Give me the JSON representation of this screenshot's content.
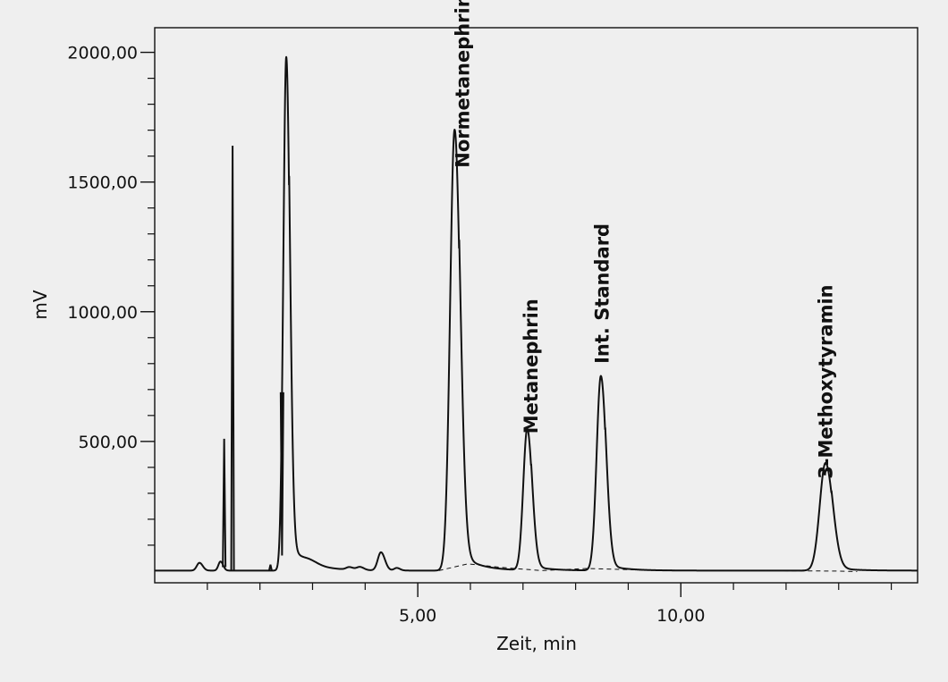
{
  "chart_data": {
    "type": "line",
    "title": "",
    "xlabel": "Zeit, min",
    "ylabel": "mV",
    "xlim": [
      0,
      14.5
    ],
    "ylim": [
      -45,
      2095
    ],
    "x_major_ticks": [
      5,
      10
    ],
    "x_minor_ticks": [
      1,
      2,
      3,
      4,
      6,
      7,
      8,
      9,
      11,
      12,
      13,
      14
    ],
    "x_tick_labels": [
      "5,00",
      "10,00"
    ],
    "y_major_ticks": [
      500,
      1000,
      1500,
      2000
    ],
    "y_minor_ticks": [
      100,
      200,
      300,
      400,
      600,
      700,
      800,
      900,
      1100,
      1200,
      1300,
      1400,
      1600,
      1700,
      1800,
      1900
    ],
    "y_tick_labels": [
      "500,00",
      "1000,00",
      "1500,00",
      "2000,00"
    ],
    "grid": false,
    "baseline_mV": 2,
    "series": [
      {
        "style": "solid",
        "peaks": [
          {
            "rt": 0.85,
            "height": 30,
            "sigma": 0.05
          },
          {
            "rt": 1.25,
            "height": 35,
            "sigma": 0.04
          },
          {
            "rt": 2.5,
            "height": 1980,
            "sigma": 0.055,
            "tail": 0.05
          },
          {
            "rt": 2.95,
            "height": 12,
            "sigma": 0.12
          },
          {
            "rt": 3.7,
            "height": 10,
            "sigma": 0.06
          },
          {
            "rt": 3.9,
            "height": 12,
            "sigma": 0.06
          },
          {
            "rt": 4.3,
            "height": 70,
            "sigma": 0.06
          },
          {
            "rt": 4.6,
            "height": 10,
            "sigma": 0.05
          },
          {
            "rt": 5.7,
            "height": 1700,
            "sigma": 0.085,
            "tail": 0.04
          },
          {
            "rt": 7.08,
            "height": 545,
            "sigma": 0.075,
            "tail": 0.03
          },
          {
            "rt": 8.48,
            "height": 750,
            "sigma": 0.08,
            "tail": 0.03
          },
          {
            "rt": 12.75,
            "height": 415,
            "sigma": 0.11,
            "tail": 0.03
          }
        ],
        "spikes": [
          {
            "x": 1.32,
            "top": 510
          },
          {
            "x": 1.48,
            "top": 1640
          },
          {
            "x": 2.2,
            "top": 25
          },
          {
            "x": 2.42,
            "top": 60
          }
        ]
      },
      {
        "style": "dashed",
        "x": [
          5.4,
          5.95,
          6.6,
          7.35,
          8.2,
          9.3,
          11.5,
          13.0,
          13.35
        ],
        "y": [
          2,
          28,
          14,
          2,
          10,
          4,
          2,
          0,
          -2
        ]
      }
    ],
    "annotations": [
      {
        "text": "Normetanephrin",
        "x": 5.85,
        "y": 1890
      },
      {
        "text": "Metanephrin",
        "x": 7.15,
        "y": 790
      },
      {
        "text": "Int. Standard",
        "x": 8.5,
        "y": 1070
      },
      {
        "text": "3-Methoxytyramin",
        "x": 12.75,
        "y": 730
      }
    ]
  }
}
